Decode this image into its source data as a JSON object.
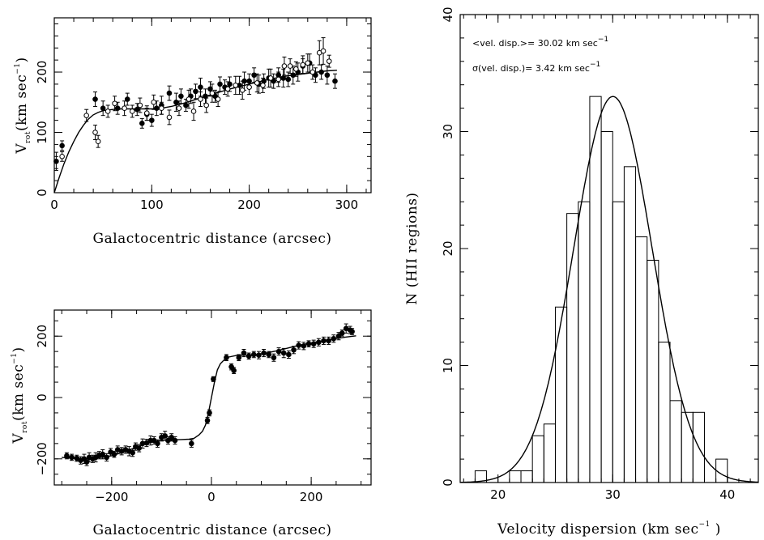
{
  "chart_data": [
    {
      "id": "rot_top",
      "type": "scatter",
      "xlabel": "Galactocentric distance (arcsec)",
      "ylabel": "V",
      "ylabel_sub": "rot",
      "ylabel_paren": "(km sec",
      "ylabel_exp": "−1",
      "ylabel_close": ")",
      "xlim": [
        0,
        325
      ],
      "ylim": [
        0,
        290
      ],
      "xticks": [
        0,
        100,
        200,
        300
      ],
      "yticks": [
        0,
        100,
        200
      ],
      "curve": [
        [
          0,
          0
        ],
        [
          5,
          25
        ],
        [
          10,
          48
        ],
        [
          15,
          68
        ],
        [
          20,
          85
        ],
        [
          25,
          100
        ],
        [
          30,
          112
        ],
        [
          35,
          122
        ],
        [
          40,
          129
        ],
        [
          45,
          133
        ],
        [
          50,
          136
        ],
        [
          60,
          138
        ],
        [
          70,
          139
        ],
        [
          80,
          139
        ],
        [
          90,
          139
        ],
        [
          100,
          139
        ],
        [
          110,
          140
        ],
        [
          120,
          143
        ],
        [
          130,
          147
        ],
        [
          140,
          152
        ],
        [
          150,
          157
        ],
        [
          160,
          162
        ],
        [
          170,
          167
        ],
        [
          180,
          172
        ],
        [
          190,
          176
        ],
        [
          200,
          180
        ],
        [
          210,
          184
        ],
        [
          220,
          188
        ],
        [
          230,
          191
        ],
        [
          240,
          194
        ],
        [
          250,
          196
        ],
        [
          260,
          198
        ],
        [
          270,
          200
        ],
        [
          280,
          202
        ],
        [
          290,
          203
        ]
      ],
      "series": [
        {
          "name": "filled",
          "marker": "filled",
          "points": [
            [
              2,
              52,
              15
            ],
            [
              8,
              78,
              8
            ],
            [
              42,
              155,
              12
            ],
            [
              50,
              140,
              12
            ],
            [
              65,
              140,
              10
            ],
            [
              75,
              155,
              10
            ],
            [
              85,
              138,
              10
            ],
            [
              90,
              115,
              8
            ],
            [
              95,
              130,
              10
            ],
            [
              100,
              120,
              10
            ],
            [
              105,
              140,
              12
            ],
            [
              110,
              145,
              15
            ],
            [
              118,
              165,
              12
            ],
            [
              125,
              150,
              15
            ],
            [
              130,
              160,
              12
            ],
            [
              135,
              145,
              10
            ],
            [
              140,
              160,
              12
            ],
            [
              145,
              168,
              12
            ],
            [
              150,
              175,
              15
            ],
            [
              155,
              160,
              12
            ],
            [
              160,
              172,
              12
            ],
            [
              165,
              160,
              10
            ],
            [
              170,
              180,
              12
            ],
            [
              175,
              175,
              12
            ],
            [
              180,
              180,
              12
            ],
            [
              190,
              178,
              15
            ],
            [
              195,
              185,
              15
            ],
            [
              200,
              185,
              12
            ],
            [
              205,
              195,
              12
            ],
            [
              210,
              180,
              15
            ],
            [
              215,
              185,
              12
            ],
            [
              220,
              190,
              15
            ],
            [
              225,
              185,
              12
            ],
            [
              230,
              195,
              12
            ],
            [
              235,
              190,
              15
            ],
            [
              240,
              188,
              12
            ],
            [
              245,
              195,
              15
            ],
            [
              250,
              200,
              15
            ],
            [
              255,
              210,
              12
            ],
            [
              262,
              215,
              15
            ],
            [
              268,
              195,
              12
            ],
            [
              274,
              200,
              12
            ],
            [
              280,
              195,
              15
            ],
            [
              288,
              185,
              12
            ]
          ]
        },
        {
          "name": "open",
          "marker": "open",
          "points": [
            [
              8,
              60,
              8
            ],
            [
              33,
              128,
              10
            ],
            [
              42,
              100,
              12
            ],
            [
              45,
              85,
              10
            ],
            [
              55,
              135,
              10
            ],
            [
              62,
              148,
              12
            ],
            [
              72,
              140,
              12
            ],
            [
              80,
              135,
              10
            ],
            [
              88,
              145,
              12
            ],
            [
              95,
              132,
              12
            ],
            [
              102,
              150,
              12
            ],
            [
              110,
              140,
              10
            ],
            [
              118,
              125,
              12
            ],
            [
              128,
              140,
              12
            ],
            [
              138,
              155,
              15
            ],
            [
              143,
              135,
              15
            ],
            [
              150,
              155,
              12
            ],
            [
              156,
              145,
              12
            ],
            [
              162,
              165,
              15
            ],
            [
              168,
              155,
              12
            ],
            [
              178,
              172,
              12
            ],
            [
              186,
              178,
              15
            ],
            [
              193,
              170,
              15
            ],
            [
              200,
              175,
              12
            ],
            [
              208,
              182,
              15
            ],
            [
              214,
              178,
              12
            ],
            [
              222,
              190,
              15
            ],
            [
              230,
              188,
              12
            ],
            [
              236,
              210,
              15
            ],
            [
              242,
              210,
              12
            ],
            [
              248,
              205,
              12
            ],
            [
              255,
              212,
              15
            ],
            [
              260,
              215,
              15
            ],
            [
              265,
              200,
              12
            ],
            [
              272,
              232,
              20
            ],
            [
              276,
              235,
              22
            ],
            [
              282,
              218,
              10
            ]
          ]
        }
      ]
    },
    {
      "id": "rot_bottom",
      "type": "scatter",
      "xlabel": "Galactocentric distance (arcsec)",
      "ylabel": "V",
      "ylabel_sub": "rot",
      "ylabel_paren": "(km sec",
      "ylabel_exp": "−1",
      "ylabel_close": ")",
      "xlim": [
        -315,
        320
      ],
      "ylim": [
        -285,
        285
      ],
      "xticks": [
        -200,
        0,
        200
      ],
      "yticks": [
        -200,
        0,
        200
      ],
      "curve": [
        [
          -300,
          -195
        ],
        [
          -280,
          -198
        ],
        [
          -260,
          -199
        ],
        [
          -240,
          -198
        ],
        [
          -220,
          -195
        ],
        [
          -200,
          -190
        ],
        [
          -180,
          -180
        ],
        [
          -160,
          -168
        ],
        [
          -140,
          -156
        ],
        [
          -120,
          -146
        ],
        [
          -100,
          -140
        ],
        [
          -80,
          -138
        ],
        [
          -60,
          -137
        ],
        [
          -45,
          -136
        ],
        [
          -35,
          -133
        ],
        [
          -25,
          -122
        ],
        [
          -18,
          -110
        ],
        [
          -12,
          -90
        ],
        [
          -6,
          -50
        ],
        [
          0,
          0
        ],
        [
          6,
          50
        ],
        [
          12,
          90
        ],
        [
          18,
          110
        ],
        [
          25,
          122
        ],
        [
          35,
          132
        ],
        [
          50,
          137
        ],
        [
          70,
          138
        ],
        [
          90,
          140
        ],
        [
          110,
          145
        ],
        [
          130,
          152
        ],
        [
          150,
          160
        ],
        [
          170,
          168
        ],
        [
          190,
          175
        ],
        [
          210,
          181
        ],
        [
          230,
          186
        ],
        [
          250,
          192
        ],
        [
          270,
          197
        ],
        [
          290,
          201
        ]
      ],
      "series": [
        {
          "name": "filled",
          "marker": "filled",
          "points": [
            [
              -290,
              -190,
              10
            ],
            [
              -280,
              -195,
              10
            ],
            [
              -270,
              -198,
              10
            ],
            [
              -262,
              -205,
              12
            ],
            [
              -255,
              -200,
              15
            ],
            [
              -250,
              -210,
              12
            ],
            [
              -245,
              -195,
              15
            ],
            [
              -238,
              -200,
              12
            ],
            [
              -232,
              -195,
              15
            ],
            [
              -225,
              -188,
              12
            ],
            [
              -218,
              -185,
              15
            ],
            [
              -210,
              -195,
              12
            ],
            [
              -202,
              -178,
              12
            ],
            [
              -195,
              -185,
              10
            ],
            [
              -188,
              -170,
              12
            ],
            [
              -180,
              -175,
              12
            ],
            [
              -172,
              -170,
              12
            ],
            [
              -165,
              -175,
              15
            ],
            [
              -158,
              -180,
              12
            ],
            [
              -152,
              -160,
              12
            ],
            [
              -145,
              -165,
              12
            ],
            [
              -138,
              -150,
              15
            ],
            [
              -130,
              -148,
              12
            ],
            [
              -122,
              -140,
              15
            ],
            [
              -115,
              -140,
              12
            ],
            [
              -108,
              -150,
              12
            ],
            [
              -100,
              -130,
              12
            ],
            [
              -93,
              -125,
              15
            ],
            [
              -87,
              -140,
              12
            ],
            [
              -80,
              -130,
              12
            ],
            [
              -73,
              -140,
              12
            ],
            [
              -40,
              -150,
              12
            ],
            [
              -8,
              -75,
              10
            ],
            [
              -4,
              -50,
              10
            ],
            [
              4,
              60,
              8
            ],
            [
              30,
              130,
              10
            ],
            [
              40,
              100,
              10
            ],
            [
              45,
              88,
              10
            ],
            [
              55,
              130,
              10
            ],
            [
              65,
              145,
              12
            ],
            [
              75,
              135,
              10
            ],
            [
              85,
              140,
              10
            ],
            [
              95,
              138,
              12
            ],
            [
              105,
              145,
              12
            ],
            [
              115,
              140,
              10
            ],
            [
              125,
              130,
              12
            ],
            [
              135,
              150,
              12
            ],
            [
              145,
              145,
              15
            ],
            [
              155,
              140,
              12
            ],
            [
              165,
              155,
              12
            ],
            [
              175,
              170,
              12
            ],
            [
              185,
              168,
              12
            ],
            [
              195,
              175,
              10
            ],
            [
              205,
              175,
              12
            ],
            [
              215,
              180,
              12
            ],
            [
              225,
              185,
              12
            ],
            [
              235,
              185,
              12
            ],
            [
              245,
              192,
              12
            ],
            [
              255,
              200,
              12
            ],
            [
              262,
              210,
              10
            ],
            [
              270,
              225,
              15
            ],
            [
              278,
              220,
              12
            ],
            [
              282,
              215,
              10
            ]
          ]
        }
      ]
    },
    {
      "id": "histogram",
      "type": "bar",
      "xlabel": "Velocity dispersion (km sec",
      "xlabel_exp": "−1",
      "xlabel_close": " )",
      "ylabel": "N (HII regions)",
      "xlim": [
        16.7,
        42.7
      ],
      "ylim": [
        0,
        40
      ],
      "xticks": [
        20,
        30,
        40
      ],
      "yticks": [
        0,
        10,
        20,
        30,
        40
      ],
      "bin_width": 1,
      "bins": [
        [
          18,
          1
        ],
        [
          19,
          0
        ],
        [
          20,
          0
        ],
        [
          21,
          1
        ],
        [
          22,
          1
        ],
        [
          23,
          4
        ],
        [
          24,
          5
        ],
        [
          25,
          15
        ],
        [
          26,
          23
        ],
        [
          27,
          24
        ],
        [
          28,
          33
        ],
        [
          29,
          30
        ],
        [
          30,
          24
        ],
        [
          31,
          27
        ],
        [
          32,
          21
        ],
        [
          33,
          19
        ],
        [
          34,
          12
        ],
        [
          35,
          7
        ],
        [
          36,
          6
        ],
        [
          37,
          6
        ],
        [
          38,
          0
        ],
        [
          39,
          2
        ]
      ],
      "gaussian": {
        "mean": 30.02,
        "sigma": 3.42,
        "amplitude": 33
      },
      "annotations": [
        {
          "text": "<vel. disp.>=  30.02  km sec",
          "exp": "−1"
        },
        {
          "text": "σ(vel. disp.)=  3.42   km sec",
          "exp": "−1"
        }
      ]
    }
  ]
}
